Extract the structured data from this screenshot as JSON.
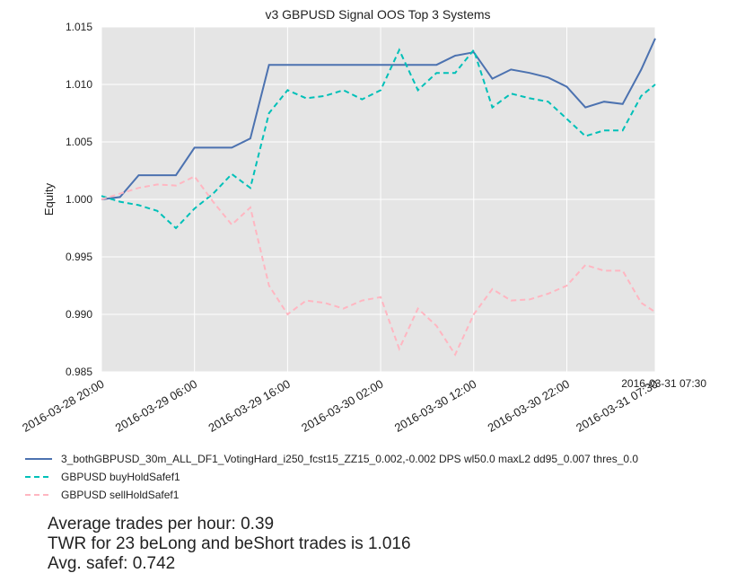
{
  "chart_data": {
    "type": "line",
    "title": "v3 GBPUSD Signal OOS Top 3 Systems",
    "y_label": "Equity",
    "x": [
      "2016-03-28 20:00",
      "2016-03-28 22:00",
      "2016-03-29 00:00",
      "2016-03-29 02:00",
      "2016-03-29 04:00",
      "2016-03-29 06:00",
      "2016-03-29 08:00",
      "2016-03-29 10:00",
      "2016-03-29 12:00",
      "2016-03-29 14:00",
      "2016-03-29 16:00",
      "2016-03-29 18:00",
      "2016-03-29 20:00",
      "2016-03-29 22:00",
      "2016-03-30 00:00",
      "2016-03-30 02:00",
      "2016-03-30 04:00",
      "2016-03-30 06:00",
      "2016-03-30 08:00",
      "2016-03-30 10:00",
      "2016-03-30 12:00",
      "2016-03-30 14:00",
      "2016-03-30 16:00",
      "2016-03-30 18:00",
      "2016-03-30 20:00",
      "2016-03-30 22:00",
      "2016-03-31 00:00",
      "2016-03-31 02:00",
      "2016-03-31 04:00",
      "2016-03-31 06:00",
      "2016-03-31 07:30"
    ],
    "series": [
      {
        "name": "3_bothGBPUSD_30m_ALL_DF1_VotingHard_i250_fcst15_ZZ15_0.002,-0.002 DPS wl50.0 maxL2 dd95_0.007 thres_0.0",
        "color": "#4c72b0",
        "dash": false,
        "values": [
          1.0,
          1.0002,
          1.0021,
          1.0021,
          1.0021,
          1.0045,
          1.0045,
          1.0045,
          1.0053,
          1.0117,
          1.0117,
          1.0117,
          1.0117,
          1.0117,
          1.0117,
          1.0117,
          1.0117,
          1.0117,
          1.0117,
          1.0125,
          1.0128,
          1.0105,
          1.0113,
          1.011,
          1.0106,
          1.0098,
          1.008,
          1.0085,
          1.0083,
          1.0113,
          1.014
        ]
      },
      {
        "name": "GBPUSD buyHoldSafef1",
        "color": "#00c0b8",
        "dash": true,
        "values": [
          1.0003,
          0.9998,
          0.9995,
          0.999,
          0.9975,
          0.9992,
          1.0005,
          1.0022,
          1.001,
          1.0075,
          1.0095,
          1.0088,
          1.009,
          1.0095,
          1.0087,
          1.0095,
          1.013,
          1.0095,
          1.011,
          1.011,
          1.013,
          1.008,
          1.0092,
          1.0088,
          1.0085,
          1.007,
          1.0055,
          1.006,
          1.006,
          1.009,
          1.01
        ]
      },
      {
        "name": "GBPUSD sellHoldSafef1",
        "color": "#ffb6c1",
        "dash": true,
        "values": [
          1.0,
          1.0005,
          1.001,
          1.0013,
          1.0012,
          1.002,
          0.9998,
          0.9978,
          0.9993,
          0.9925,
          0.99,
          0.9912,
          0.991,
          0.9905,
          0.9912,
          0.9915,
          0.987,
          0.9905,
          0.989,
          0.9865,
          0.99,
          0.9922,
          0.9912,
          0.9913,
          0.9918,
          0.9925,
          0.9943,
          0.9938,
          0.9938,
          0.991,
          0.9902
        ]
      }
    ],
    "xlim": [
      "2016-03-28 20:00",
      "2016-03-31 07:30"
    ],
    "xticks": [
      "2016-03-28 20:00",
      "2016-03-29 06:00",
      "2016-03-29 16:00",
      "2016-03-30 02:00",
      "2016-03-30 12:00",
      "2016-03-30 22:00",
      "2016-03-31 07:30"
    ],
    "ylim": [
      0.985,
      1.015
    ],
    "yticks": [
      {
        "value": 0.985,
        "label": "0.985"
      },
      {
        "value": 0.99,
        "label": "0.990"
      },
      {
        "value": 0.995,
        "label": "0.995"
      },
      {
        "value": 1.0,
        "label": "1.000"
      },
      {
        "value": 1.005,
        "label": "1.005"
      },
      {
        "value": 1.01,
        "label": "1.010"
      },
      {
        "value": 1.015,
        "label": "1.015"
      }
    ],
    "grid": true,
    "annotations": [
      "Average trades per hour: 0.39",
      "TWR for 23 beLong and beShort trades is 1.016",
      "Avg. safef: 0.742"
    ]
  }
}
